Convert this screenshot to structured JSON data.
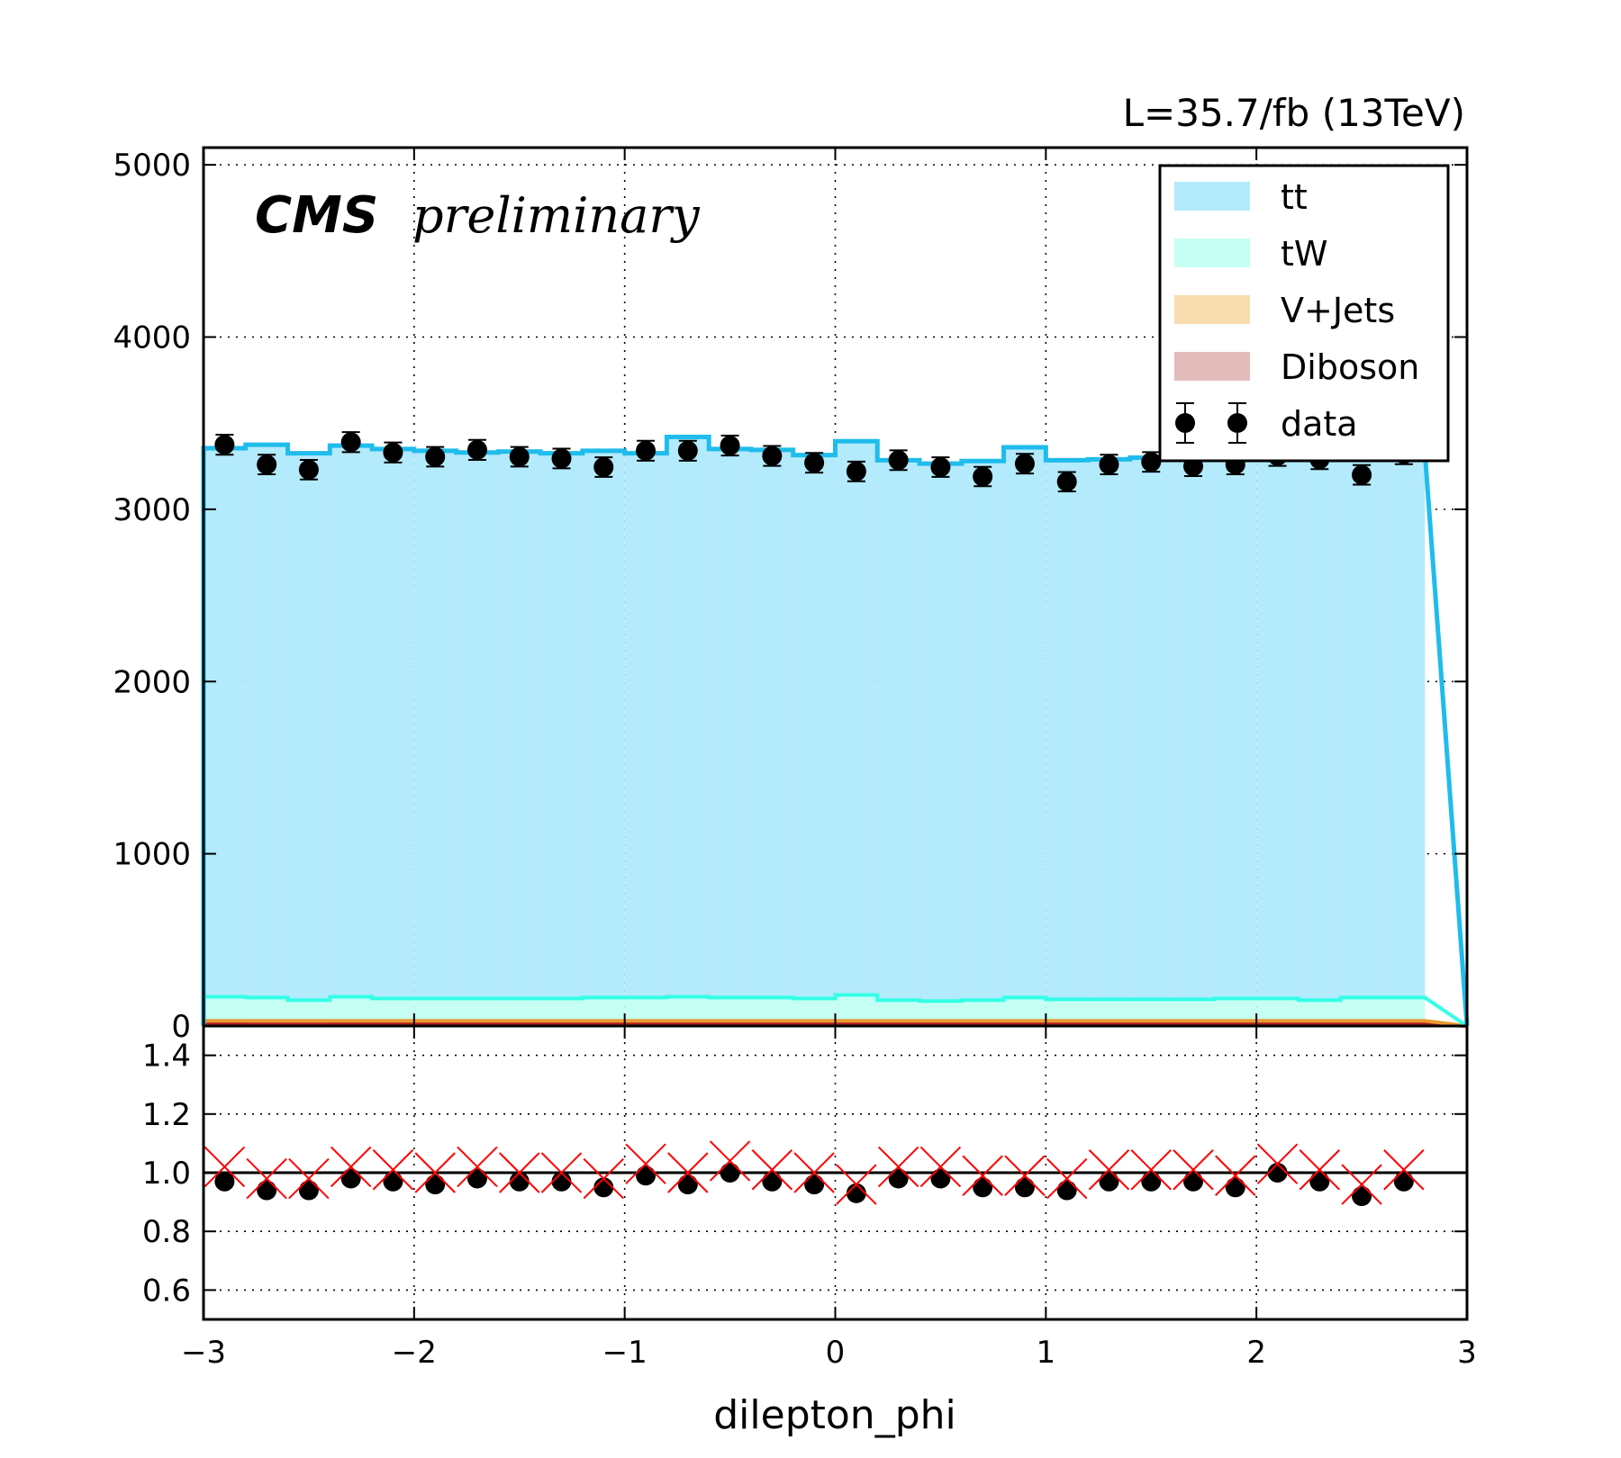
{
  "chart_data": {
    "type": "bar",
    "lumi_label": "L=35.7/fb (13TeV)",
    "cms_label": "CMS",
    "cms_sublabel": "preliminary",
    "xlabel": "dilepton_phi",
    "xlim": [
      -3,
      3
    ],
    "ylim": [
      0,
      5100
    ],
    "ratio_ylim": [
      0.5,
      1.5
    ],
    "grid": true,
    "legend_position": "top-right",
    "x_ticks": [
      -3,
      -2,
      -1,
      0,
      1,
      2,
      3
    ],
    "x_tick_labels": [
      "−3",
      "−2",
      "−1",
      "0",
      "1",
      "2",
      "3"
    ],
    "y_ticks": [
      0,
      1000,
      2000,
      3000,
      4000,
      5000
    ],
    "y_tick_labels": [
      "0",
      "1000",
      "2000",
      "3000",
      "4000",
      "5000"
    ],
    "ratio_ticks": [
      0.6,
      0.8,
      1.0,
      1.2,
      1.4
    ],
    "ratio_tick_labels": [
      "0.6",
      "0.8",
      "1.0",
      "1.2",
      "1.4"
    ],
    "bin_edges": [
      -3.0,
      -2.8,
      -2.6,
      -2.4,
      -2.2,
      -2.0,
      -1.8,
      -1.6,
      -1.4,
      -1.2,
      -1.0,
      -0.8,
      -0.6,
      -0.4,
      -0.2,
      0.0,
      0.2,
      0.4,
      0.6,
      0.8,
      1.0,
      1.2,
      1.4,
      1.6,
      1.8,
      2.0,
      2.2,
      2.4,
      2.6,
      2.8
    ],
    "stack_total": [
      3355,
      3375,
      3325,
      3370,
      3350,
      3340,
      3330,
      3335,
      3325,
      3340,
      3325,
      3420,
      3350,
      3345,
      3315,
      3395,
      3285,
      3265,
      3280,
      3360,
      3285,
      3290,
      3300,
      3310,
      3315,
      3300,
      3320,
      3310,
      3330
    ],
    "series": [
      {
        "name": "tt",
        "color": "#b3eafc",
        "edge_color": "#1fbcec",
        "values": [
          3185,
          3210,
          3175,
          3200,
          3190,
          3180,
          3170,
          3175,
          3165,
          3175,
          3160,
          3250,
          3185,
          3180,
          3155,
          3215,
          3135,
          3120,
          3130,
          3195,
          3130,
          3135,
          3145,
          3155,
          3155,
          3140,
          3170,
          3145,
          3165
        ]
      },
      {
        "name": "tW",
        "color": "#c5fff4",
        "edge_color": "#33ffe6",
        "values": [
          140,
          135,
          120,
          140,
          130,
          130,
          130,
          130,
          130,
          135,
          135,
          140,
          135,
          135,
          130,
          150,
          120,
          115,
          120,
          135,
          125,
          125,
          125,
          125,
          130,
          130,
          120,
          135,
          135
        ]
      },
      {
        "name": "V+Jets",
        "color": "#f8dcb0",
        "edge_color": "#e89a30",
        "values": [
          18,
          20,
          20,
          18,
          18,
          19,
          19,
          19,
          19,
          19,
          19,
          19,
          19,
          19,
          19,
          19,
          19,
          19,
          19,
          19,
          19,
          19,
          19,
          19,
          19,
          19,
          19,
          19,
          19
        ]
      },
      {
        "name": "Diboson",
        "color": "#e3bcbc",
        "edge_color": "#b52020",
        "values": [
          12,
          10,
          10,
          12,
          12,
          11,
          11,
          11,
          11,
          11,
          11,
          11,
          11,
          11,
          11,
          11,
          11,
          11,
          11,
          11,
          11,
          11,
          11,
          11,
          11,
          11,
          11,
          11,
          11
        ]
      }
    ],
    "data": {
      "name": "data",
      "x": [
        -2.9,
        -2.7,
        -2.5,
        -2.3,
        -2.1,
        -1.9,
        -1.7,
        -1.5,
        -1.3,
        -1.1,
        -0.9,
        -0.7,
        -0.5,
        -0.3,
        -0.1,
        0.1,
        0.3,
        0.5,
        0.7,
        0.9,
        1.1,
        1.3,
        1.5,
        1.7,
        1.9,
        2.1,
        2.3,
        2.5,
        2.7
      ],
      "y": [
        3375,
        3260,
        3230,
        3390,
        3330,
        3305,
        3345,
        3305,
        3295,
        3245,
        3340,
        3340,
        3370,
        3310,
        3270,
        3220,
        3285,
        3245,
        3190,
        3265,
        3160,
        3260,
        3275,
        3250,
        3260,
        3310,
        3290,
        3200,
        3320
      ],
      "yerr": [
        58,
        57,
        57,
        58,
        58,
        57,
        58,
        57,
        57,
        57,
        58,
        58,
        58,
        58,
        57,
        57,
        57,
        57,
        56,
        57,
        56,
        57,
        57,
        57,
        57,
        58,
        57,
        57,
        58
      ]
    },
    "ratio": {
      "x": [
        -2.9,
        -2.7,
        -2.5,
        -2.3,
        -2.1,
        -1.9,
        -1.7,
        -1.5,
        -1.3,
        -1.1,
        -0.9,
        -0.7,
        -0.5,
        -0.3,
        -0.1,
        0.1,
        0.3,
        0.5,
        0.7,
        0.9,
        1.1,
        1.3,
        1.5,
        1.7,
        1.9,
        2.1,
        2.3,
        2.5,
        2.7
      ],
      "data_over_mc": [
        0.97,
        0.94,
        0.94,
        0.98,
        0.97,
        0.96,
        0.98,
        0.97,
        0.97,
        0.95,
        0.99,
        0.96,
        1.0,
        0.97,
        0.96,
        0.93,
        0.98,
        0.98,
        0.95,
        0.95,
        0.94,
        0.97,
        0.97,
        0.97,
        0.95,
        1.0,
        0.97,
        0.92,
        0.97
      ],
      "red_markers": [
        1.02,
        0.98,
        0.98,
        1.02,
        1.01,
        1.0,
        1.02,
        1.0,
        1.0,
        0.98,
        1.03,
        1.0,
        1.04,
        1.01,
        1.0,
        0.96,
        1.02,
        1.02,
        0.99,
        0.99,
        0.98,
        1.01,
        1.01,
        1.01,
        0.99,
        1.03,
        1.01,
        0.96,
        1.01
      ],
      "reference_line": 1.0
    }
  }
}
